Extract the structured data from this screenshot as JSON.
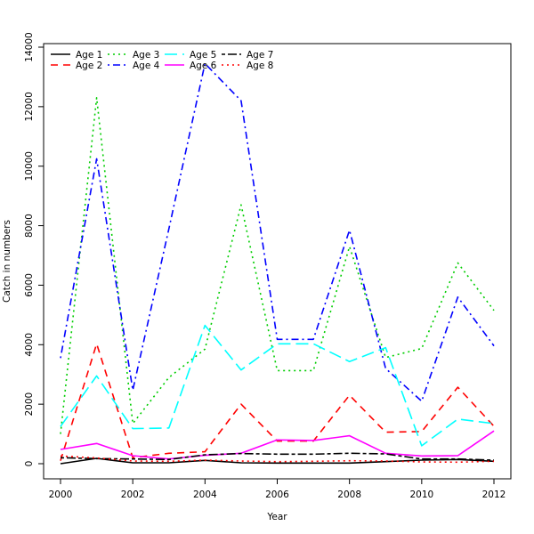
{
  "chart_data": {
    "type": "line",
    "title": "",
    "xlabel": "Year",
    "ylabel": "Catch in numbers",
    "xlim": [
      2000,
      2012
    ],
    "ylim": [
      0,
      14000
    ],
    "x_ticks": [
      2000,
      2002,
      2004,
      2006,
      2008,
      2010,
      2012
    ],
    "y_ticks": [
      0,
      2000,
      4000,
      6000,
      8000,
      10000,
      12000,
      14000
    ],
    "x": [
      2000,
      2001,
      2002,
      2003,
      2004,
      2005,
      2006,
      2007,
      2008,
      2009,
      2010,
      2011,
      2012
    ],
    "legend_position": "top-left",
    "series": [
      {
        "name": "Age 1",
        "color": "#000000",
        "dash": "solid",
        "values": [
          0,
          180,
          30,
          30,
          110,
          30,
          20,
          20,
          20,
          70,
          120,
          140,
          80
        ]
      },
      {
        "name": "Age 2",
        "color": "#ff0000",
        "dash": "dashed",
        "values": [
          100,
          4030,
          200,
          350,
          400,
          2000,
          760,
          760,
          2300,
          1060,
          1080,
          2570,
          1260
        ]
      },
      {
        "name": "Age 3",
        "color": "#00cd00",
        "dash": "dotted",
        "values": [
          1000,
          12300,
          1350,
          2900,
          3850,
          8700,
          3130,
          3130,
          7300,
          3570,
          3870,
          6750,
          5150
        ]
      },
      {
        "name": "Age 4",
        "color": "#0000ff",
        "dash": "dotdash",
        "values": [
          3550,
          10250,
          2470,
          7900,
          13450,
          12200,
          4180,
          4180,
          7850,
          3200,
          2100,
          5600,
          3960
        ]
      },
      {
        "name": "Age 5",
        "color": "#00ffff",
        "dash": "longdash",
        "values": [
          1250,
          2950,
          1180,
          1200,
          4650,
          3150,
          4030,
          4030,
          3430,
          3900,
          600,
          1500,
          1350
        ]
      },
      {
        "name": "Age 6",
        "color": "#ff00ff",
        "dash": "solid",
        "values": [
          480,
          680,
          270,
          160,
          280,
          350,
          800,
          780,
          940,
          350,
          260,
          270,
          1100
        ]
      },
      {
        "name": "Age 7",
        "color": "#000000",
        "dash": "twodash",
        "values": [
          200,
          170,
          160,
          140,
          300,
          340,
          320,
          320,
          350,
          330,
          160,
          160,
          120
        ]
      },
      {
        "name": "Age 8",
        "color": "#ff0000",
        "dash": "dotted",
        "values": [
          260,
          190,
          90,
          80,
          120,
          90,
          70,
          80,
          100,
          90,
          60,
          50,
          80
        ]
      }
    ]
  }
}
